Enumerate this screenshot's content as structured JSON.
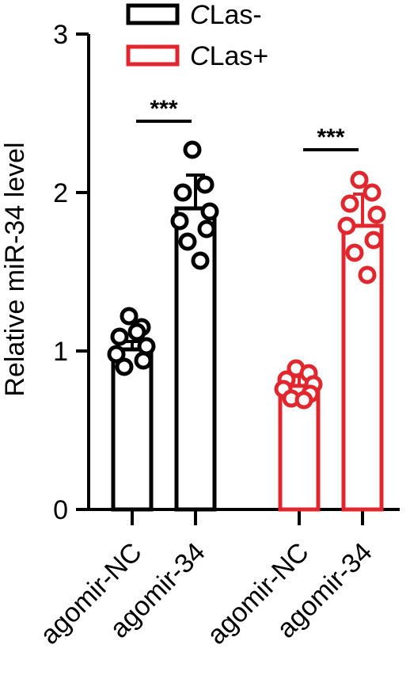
{
  "chart_data": {
    "type": "bar",
    "ylabel": "Relative miR-34 level",
    "ylim": [
      0,
      3
    ],
    "yticks": [
      "0",
      "1",
      "2",
      "3"
    ],
    "categories": [
      "agomir-NC",
      "agomir-34",
      "agomir-NC",
      "agomir-34"
    ],
    "legend": {
      "placement": "top",
      "entries": [
        {
          "italic": "C",
          "rest": "Las-",
          "color": "#000000"
        },
        {
          "italic": "C",
          "rest": "Las+",
          "color": "#e1262d"
        }
      ]
    },
    "bars": [
      {
        "category": "agomir-NC",
        "group": 0,
        "value": 1.01,
        "error": 0.05,
        "points": [
          1.22,
          1.15,
          1.09,
          1.03,
          0.98,
          0.94,
          0.9,
          1.12
        ]
      },
      {
        "category": "agomir-34",
        "group": 0,
        "value": 1.9,
        "error": 0.21,
        "points": [
          2.27,
          2.05,
          2.0,
          1.88,
          1.82,
          1.77,
          1.69,
          1.57
        ]
      },
      {
        "category": "agomir-NC",
        "group": 1,
        "value": 0.78,
        "error": 0.06,
        "points": [
          0.89,
          0.86,
          0.82,
          0.79,
          0.76,
          0.73,
          0.7,
          0.69
        ]
      },
      {
        "category": "agomir-34",
        "group": 1,
        "value": 1.79,
        "error": 0.2,
        "points": [
          2.08,
          2.0,
          1.93,
          1.86,
          1.79,
          1.7,
          1.62,
          1.48
        ]
      }
    ],
    "significance": [
      {
        "label": "***",
        "from": 0,
        "to": 1,
        "y": 2.45
      },
      {
        "label": "***",
        "from": 2,
        "to": 3,
        "y": 2.27
      }
    ]
  }
}
